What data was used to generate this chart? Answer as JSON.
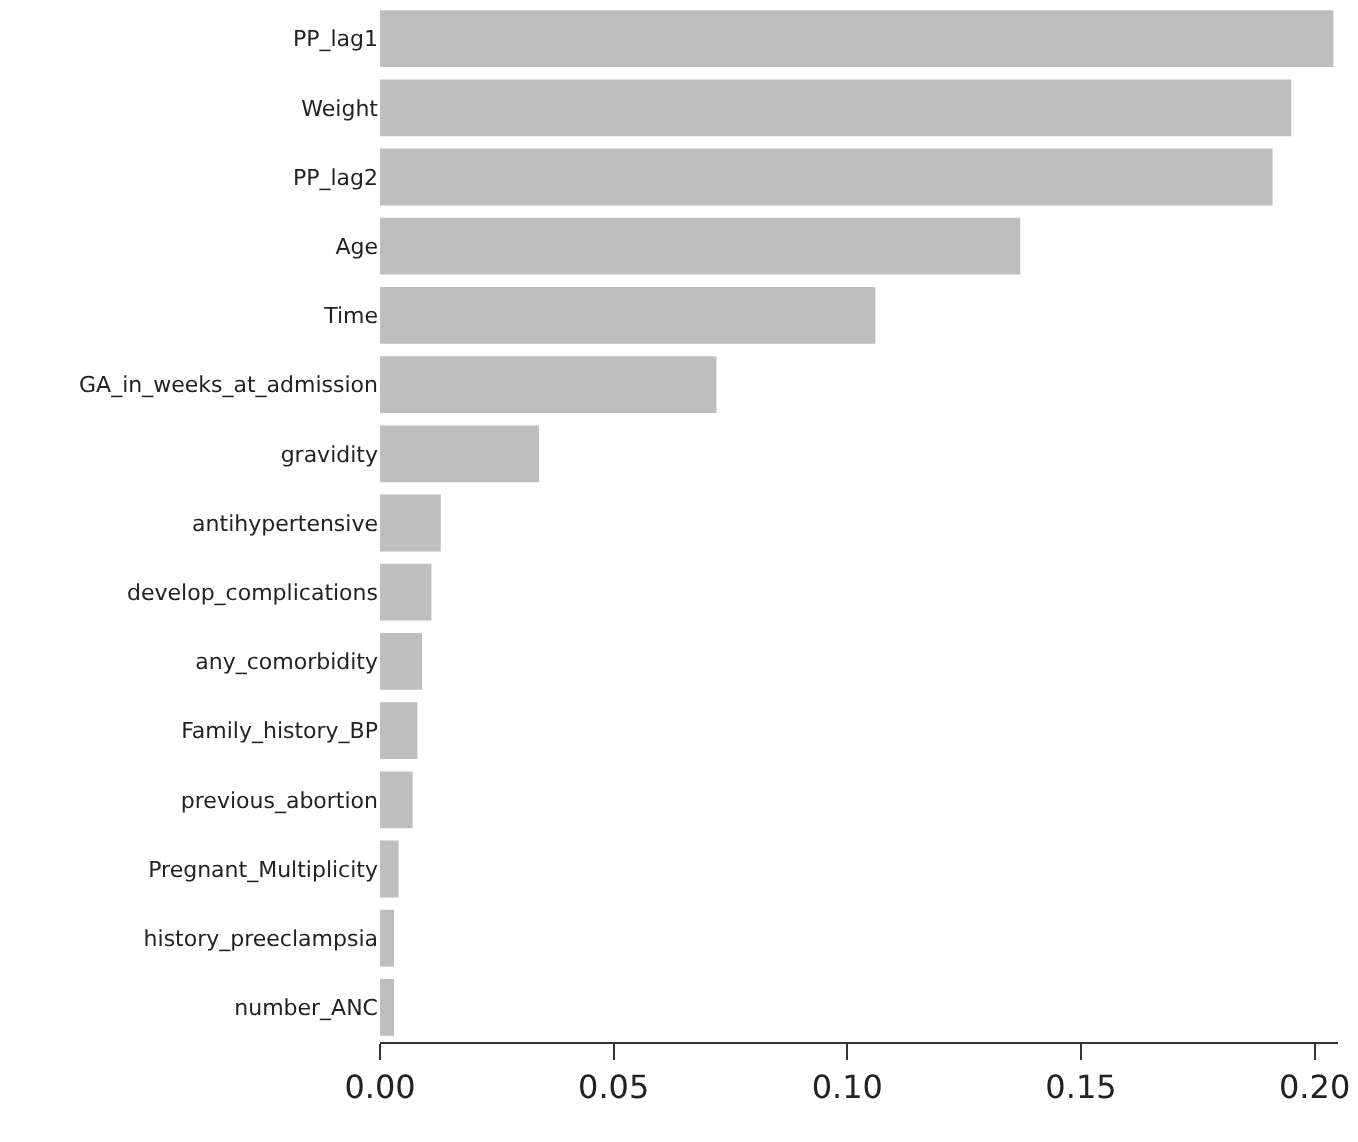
{
  "chart_data": {
    "type": "bar",
    "orientation": "horizontal",
    "categories": [
      "PP_lag1",
      "Weight",
      "PP_lag2",
      "Age",
      "Time",
      "GA_in_weeks_at_admission",
      "gravidity",
      "antihypertensive",
      "develop_complications",
      "any_comorbidity",
      "Family_history_BP",
      "previous_abortion",
      "Pregnant_Multiplicity",
      "history_preeclampsia",
      "number_ANC"
    ],
    "values": [
      0.204,
      0.195,
      0.191,
      0.137,
      0.106,
      0.072,
      0.034,
      0.013,
      0.011,
      0.009,
      0.008,
      0.007,
      0.004,
      0.003,
      0.003
    ],
    "color": "#bebebe",
    "xlim": [
      0,
      0.205
    ],
    "xticks": [
      {
        "value": 0,
        "label": "0.00"
      },
      {
        "value": 0.05,
        "label": "0.05"
      },
      {
        "value": 0.1,
        "label": "0.10"
      },
      {
        "value": 0.15,
        "label": "0.15"
      },
      {
        "value": 0.2,
        "label": "0.20"
      }
    ]
  }
}
